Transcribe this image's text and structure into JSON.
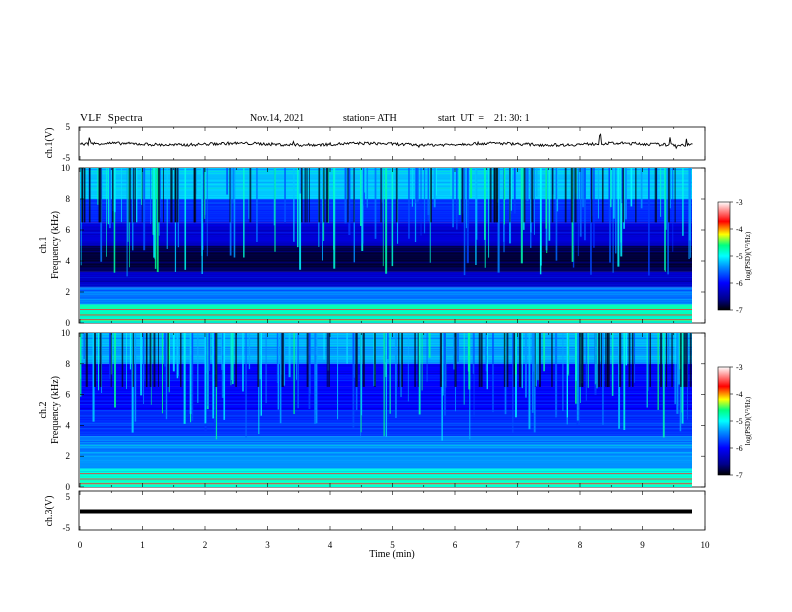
{
  "header": {
    "title": "VLF  Spectra",
    "date": "Nov.14, 2021",
    "station": "station= ATH",
    "start": "start  UT  =    21: 30: 1"
  },
  "chart_data": [
    {
      "type": "line",
      "panel": "ch1-waveform",
      "ylabel": "ch.1(V)",
      "yticks": [
        "5",
        "-5"
      ],
      "ylim": [
        -5,
        5
      ],
      "series": [
        {
          "values_approx": "noisy trace near 0 V with occasional spikes"
        }
      ],
      "xlim": [
        0,
        10
      ]
    },
    {
      "type": "heatmap",
      "panel": "ch1-spectrogram",
      "ylabel": "ch.1",
      "ylabel2": "Frequency  (kHz)",
      "ylim": [
        0,
        10
      ],
      "yticks": [
        "0",
        "2",
        "4",
        "6",
        "8",
        "10"
      ],
      "xlim": [
        0,
        10
      ],
      "colorbar": {
        "label": "log(PSD)(V²/Hz)",
        "range": [
          -7,
          -3
        ],
        "ticks": [
          "-3",
          "-4",
          "-5",
          "-6",
          "-7"
        ]
      },
      "bands": [
        {
          "from_khz": 8.0,
          "to_khz": 10.0,
          "log_psd": -5.2
        },
        {
          "from_khz": 6.5,
          "to_khz": 8.0,
          "log_psd": -5.8
        },
        {
          "from_khz": 5.0,
          "to_khz": 6.5,
          "log_psd": -6.2
        },
        {
          "from_khz": 3.3,
          "to_khz": 5.0,
          "log_psd": -6.8
        },
        {
          "from_khz": 2.3,
          "to_khz": 3.3,
          "log_psd": -6.3
        },
        {
          "from_khz": 1.2,
          "to_khz": 2.3,
          "log_psd": -5.5
        },
        {
          "from_khz": 0.0,
          "to_khz": 1.2,
          "log_psd": -4.8
        }
      ]
    },
    {
      "type": "heatmap",
      "panel": "ch2-spectrogram",
      "ylabel": "ch.2",
      "ylabel2": "Frequency  (kHz)",
      "ylim": [
        0,
        10
      ],
      "yticks": [
        "0",
        "2",
        "4",
        "6",
        "8",
        "10"
      ],
      "xlim": [
        0,
        10
      ],
      "colorbar": {
        "label": "log(PSD)(V²/Hz)",
        "range": [
          -7,
          -3
        ],
        "ticks": [
          "-3",
          "-4",
          "-5",
          "-6",
          "-7"
        ]
      },
      "bands": [
        {
          "from_khz": 8.0,
          "to_khz": 10.0,
          "log_psd": -5.3
        },
        {
          "from_khz": 6.5,
          "to_khz": 8.0,
          "log_psd": -6.0
        },
        {
          "from_khz": 5.0,
          "to_khz": 6.5,
          "log_psd": -6.0
        },
        {
          "from_khz": 3.3,
          "to_khz": 5.0,
          "log_psd": -5.8
        },
        {
          "from_khz": 1.2,
          "to_khz": 3.3,
          "log_psd": -5.4
        },
        {
          "from_khz": 0.0,
          "to_khz": 1.2,
          "log_psd": -4.9
        }
      ]
    },
    {
      "type": "line",
      "panel": "ch3-waveform",
      "ylabel": "ch.3(V)",
      "yticks": [
        "5",
        "-5"
      ],
      "ylim": [
        -5,
        5
      ],
      "series": [
        {
          "values_approx": "flat thick trace at about -1.3 V"
        }
      ],
      "xlim": [
        0,
        10
      ],
      "xlabel": "Time  (min)",
      "xticks": [
        "0",
        "1",
        "2",
        "3",
        "4",
        "5",
        "6",
        "7",
        "8",
        "9",
        "10"
      ]
    }
  ],
  "colors": {
    "scale": [
      "#000000",
      "#00008b",
      "#0000ff",
      "#0090ff",
      "#00ffff",
      "#00ff80",
      "#ffff00",
      "#ff0000",
      "#ffffff"
    ]
  }
}
